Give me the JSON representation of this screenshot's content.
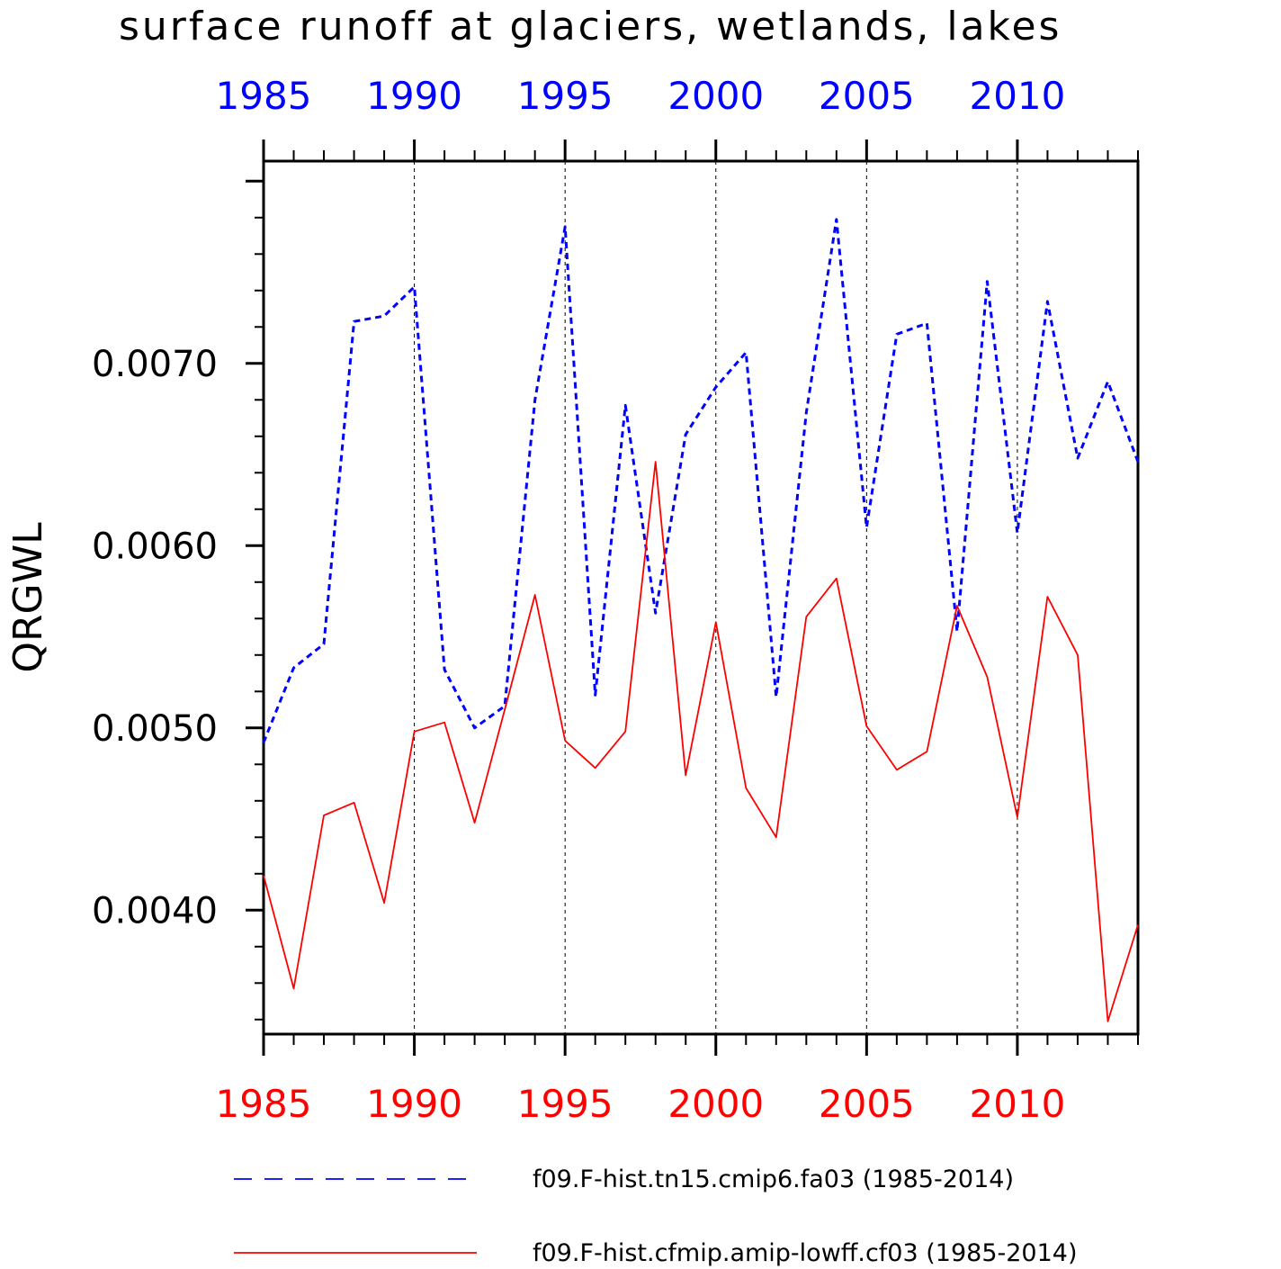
{
  "chart_data": {
    "type": "line",
    "title": "surface runoff at glaciers, wetlands, lakes",
    "ylabel": "QRGWL",
    "xlim": [
      1985,
      2014
    ],
    "ylim": [
      0.00332,
      0.00811
    ],
    "top_ticks": [
      "1985",
      "1990",
      "1995",
      "2000",
      "2005",
      "2010"
    ],
    "bottom_ticks": [
      "1985",
      "1990",
      "1995",
      "2000",
      "2005",
      "2010"
    ],
    "y_ticks": [
      "0.0040",
      "0.0050",
      "0.0060",
      "0.0070"
    ],
    "grid": "vertical dashed at major x ticks",
    "colors": {
      "top_axis": "#0000ff",
      "bottom_axis": "#ff0000",
      "series_1": "#0000ff",
      "series_2": "#ff0000"
    },
    "x": [
      1985,
      1986,
      1987,
      1988,
      1989,
      1990,
      1991,
      1992,
      1993,
      1994,
      1995,
      1996,
      1997,
      1998,
      1999,
      2000,
      2001,
      2002,
      2003,
      2004,
      2005,
      2006,
      2007,
      2008,
      2009,
      2010,
      2011,
      2012,
      2013,
      2014
    ],
    "series": [
      {
        "name": "f09.F-hist.tn15.cmip6.fa03 (1985-2014)",
        "style": "dashed",
        "values": [
          0.00492,
          0.00533,
          0.00546,
          0.00723,
          0.00726,
          0.00742,
          0.00532,
          0.005,
          0.00512,
          0.0068,
          0.00775,
          0.00518,
          0.00677,
          0.00563,
          0.00661,
          0.00687,
          0.00706,
          0.00517,
          0.00673,
          0.00779,
          0.0061,
          0.00716,
          0.00722,
          0.00553,
          0.00745,
          0.00607,
          0.00734,
          0.00648,
          0.0069,
          0.00646
        ]
      },
      {
        "name": "f09.F-hist.cfmip.amip-lowff.cf03 (1985-2014)",
        "style": "solid",
        "values": [
          0.00419,
          0.00357,
          0.00452,
          0.00459,
          0.00404,
          0.00498,
          0.00503,
          0.00448,
          0.0051,
          0.00573,
          0.00493,
          0.00478,
          0.00498,
          0.00646,
          0.00474,
          0.00558,
          0.00467,
          0.0044,
          0.00561,
          0.00582,
          0.00501,
          0.00477,
          0.00487,
          0.00567,
          0.00528,
          0.00451,
          0.00572,
          0.0054,
          0.00339,
          0.00392
        ]
      }
    ]
  }
}
